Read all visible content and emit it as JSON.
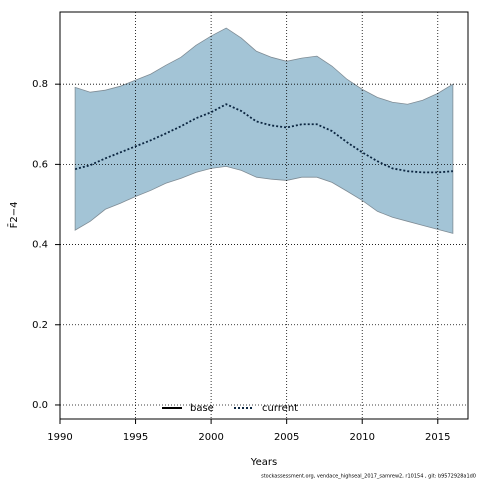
{
  "chart_data": {
    "type": "line",
    "xlabel": "Years",
    "ylabel": "F̄2−4",
    "caption": "stockassessment.org, vendace_highseal_2017_samrew2, r10154 , git: b9572928a1d0",
    "x": [
      1991,
      1992,
      1993,
      1994,
      1995,
      1996,
      1997,
      1998,
      1999,
      2000,
      2001,
      2002,
      2003,
      2004,
      2005,
      2006,
      2007,
      2008,
      2009,
      2010,
      2011,
      2012,
      2013,
      2014,
      2015,
      2016
    ],
    "series": [
      {
        "name": "base",
        "color": "#000000",
        "style": "solid",
        "values": [
          null,
          null,
          null,
          null,
          null,
          null,
          null,
          null,
          null,
          null,
          null,
          null,
          null,
          null,
          null,
          null,
          null,
          null,
          null,
          null,
          null,
          null,
          null,
          null,
          null,
          null
        ]
      },
      {
        "name": "current",
        "color": "#0b2540",
        "style": "dotted",
        "values": [
          0.588,
          0.598,
          0.615,
          0.63,
          0.645,
          0.66,
          0.677,
          0.695,
          0.715,
          0.73,
          0.75,
          0.733,
          0.707,
          0.697,
          0.692,
          0.7,
          0.7,
          0.683,
          0.655,
          0.63,
          0.608,
          0.59,
          0.583,
          0.58,
          0.58,
          0.583
        ]
      }
    ],
    "band": {
      "color": "#a3c4d6",
      "upper": [
        0.792,
        0.78,
        0.785,
        0.795,
        0.81,
        0.825,
        0.847,
        0.867,
        0.897,
        0.92,
        0.94,
        0.915,
        0.882,
        0.867,
        0.857,
        0.865,
        0.87,
        0.845,
        0.812,
        0.787,
        0.767,
        0.755,
        0.75,
        0.76,
        0.777,
        0.8
      ],
      "lower": [
        0.436,
        0.458,
        0.488,
        0.503,
        0.52,
        0.535,
        0.553,
        0.565,
        0.58,
        0.59,
        0.595,
        0.585,
        0.568,
        0.563,
        0.56,
        0.568,
        0.568,
        0.555,
        0.533,
        0.51,
        0.483,
        0.468,
        0.458,
        0.448,
        0.438,
        0.428
      ]
    },
    "xlim": [
      1990,
      2017
    ],
    "ylim": [
      -0.035,
      0.98
    ],
    "xticks": [
      1990,
      1995,
      2000,
      2005,
      2010,
      2015
    ],
    "yticks": [
      {
        "value": 0,
        "label": "0.0"
      },
      0.2,
      0.4,
      0.6,
      0.8
    ],
    "grid": true,
    "legend": "bottom"
  }
}
